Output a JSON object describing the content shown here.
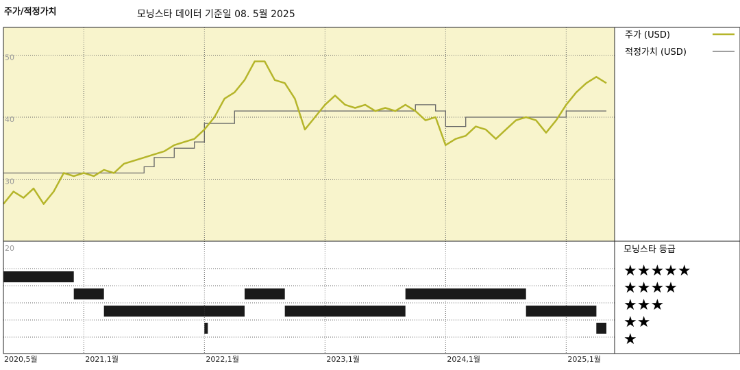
{
  "header": {
    "title": "주가/적정가치",
    "subtitle": "모닝스타 데이터 기준일 08. 5월 2025"
  },
  "legend": {
    "price": "주가 (USD)",
    "fair_value": "적정가치 (USD)",
    "rating_title": "모닝스타 등급"
  },
  "colors": {
    "price": "#b5b52a",
    "fair_value": "#666666",
    "upper_bg": "#f8f4cc",
    "rating_bar": "#1a1a1a"
  },
  "chart_data": {
    "type": "line",
    "title": "주가/적정가치",
    "x_range": [
      "2020-05",
      "2025-05"
    ],
    "ylim": [
      20,
      60
    ],
    "y_ticks": [
      20,
      30,
      40,
      50,
      60
    ],
    "x_tick_labels": [
      "2020,5월",
      "2021,1월",
      "2022,1월",
      "2023,1월",
      "2024,1월",
      "2025,1월"
    ],
    "series": [
      {
        "name": "주가 (USD)",
        "points": [
          [
            "2020-05",
            26
          ],
          [
            "2020-06",
            28
          ],
          [
            "2020-07",
            27
          ],
          [
            "2020-08",
            28.5
          ],
          [
            "2020-09",
            26
          ],
          [
            "2020-10",
            28
          ],
          [
            "2020-11",
            31
          ],
          [
            "2020-12",
            30.5
          ],
          [
            "2021-01",
            31
          ],
          [
            "2021-02",
            30.5
          ],
          [
            "2021-03",
            31.5
          ],
          [
            "2021-04",
            31
          ],
          [
            "2021-05",
            32.5
          ],
          [
            "2021-06",
            33
          ],
          [
            "2021-07",
            33.5
          ],
          [
            "2021-08",
            34
          ],
          [
            "2021-09",
            34.5
          ],
          [
            "2021-10",
            35.5
          ],
          [
            "2021-11",
            36
          ],
          [
            "2021-12",
            36.5
          ],
          [
            "2022-01",
            38
          ],
          [
            "2022-02",
            40
          ],
          [
            "2022-03",
            43
          ],
          [
            "2022-04",
            44
          ],
          [
            "2022-05",
            46
          ],
          [
            "2022-06",
            49
          ],
          [
            "2022-07",
            49
          ],
          [
            "2022-08",
            46
          ],
          [
            "2022-09",
            45.5
          ],
          [
            "2022-10",
            43
          ],
          [
            "2022-11",
            38
          ],
          [
            "2022-12",
            40
          ],
          [
            "2023-01",
            42
          ],
          [
            "2023-02",
            43.5
          ],
          [
            "2023-03",
            42
          ],
          [
            "2023-04",
            41.5
          ],
          [
            "2023-05",
            42
          ],
          [
            "2023-06",
            41
          ],
          [
            "2023-07",
            41.5
          ],
          [
            "2023-08",
            41
          ],
          [
            "2023-09",
            42
          ],
          [
            "2023-10",
            41
          ],
          [
            "2023-11",
            39.5
          ],
          [
            "2023-12",
            40
          ],
          [
            "2024-01",
            35.5
          ],
          [
            "2024-02",
            36.5
          ],
          [
            "2024-03",
            37
          ],
          [
            "2024-04",
            38.5
          ],
          [
            "2024-05",
            38
          ],
          [
            "2024-06",
            36.5
          ],
          [
            "2024-07",
            38
          ],
          [
            "2024-08",
            39.5
          ],
          [
            "2024-09",
            40
          ],
          [
            "2024-10",
            39.5
          ],
          [
            "2024-11",
            37.5
          ],
          [
            "2024-12",
            39.5
          ],
          [
            "2025-01",
            42
          ],
          [
            "2025-02",
            44
          ],
          [
            "2025-03",
            45.5
          ],
          [
            "2025-04",
            46.5
          ],
          [
            "2025-05",
            45.5
          ]
        ]
      },
      {
        "name": "적정가치 (USD)",
        "step": true,
        "points": [
          [
            "2020-05",
            31
          ],
          [
            "2021-07",
            31
          ],
          [
            "2021-07",
            32
          ],
          [
            "2021-08",
            32
          ],
          [
            "2021-08",
            33.5
          ],
          [
            "2021-10",
            33.5
          ],
          [
            "2021-10",
            35
          ],
          [
            "2021-12",
            35
          ],
          [
            "2021-12",
            36
          ],
          [
            "2022-01",
            36
          ],
          [
            "2022-01",
            39
          ],
          [
            "2022-04",
            39
          ],
          [
            "2022-04",
            41
          ],
          [
            "2023-10",
            41
          ],
          [
            "2023-10",
            42
          ],
          [
            "2023-12",
            42
          ],
          [
            "2023-12",
            41
          ],
          [
            "2024-01",
            41
          ],
          [
            "2024-01",
            38.5
          ],
          [
            "2024-03",
            38.5
          ],
          [
            "2024-03",
            40
          ],
          [
            "2025-01",
            40
          ],
          [
            "2025-01",
            41
          ],
          [
            "2025-05",
            41
          ]
        ]
      }
    ],
    "star_rating": {
      "levels": [
        "★★★★★",
        "★★★★",
        "★★★",
        "★★",
        "★"
      ],
      "periods": [
        [
          5,
          "2020-05",
          "2020-12"
        ],
        [
          4,
          "2020-12",
          "2021-03"
        ],
        [
          3,
          "2021-03",
          "2022-01"
        ],
        [
          2,
          "2022-01",
          "2022-01"
        ],
        [
          3,
          "2022-01",
          "2022-05"
        ],
        [
          4,
          "2022-05",
          "2022-09"
        ],
        [
          3,
          "2022-09",
          "2023-09"
        ],
        [
          4,
          "2023-09",
          "2024-09"
        ],
        [
          3,
          "2024-09",
          "2025-04"
        ],
        [
          2,
          "2025-04",
          "2025-05"
        ]
      ]
    }
  }
}
